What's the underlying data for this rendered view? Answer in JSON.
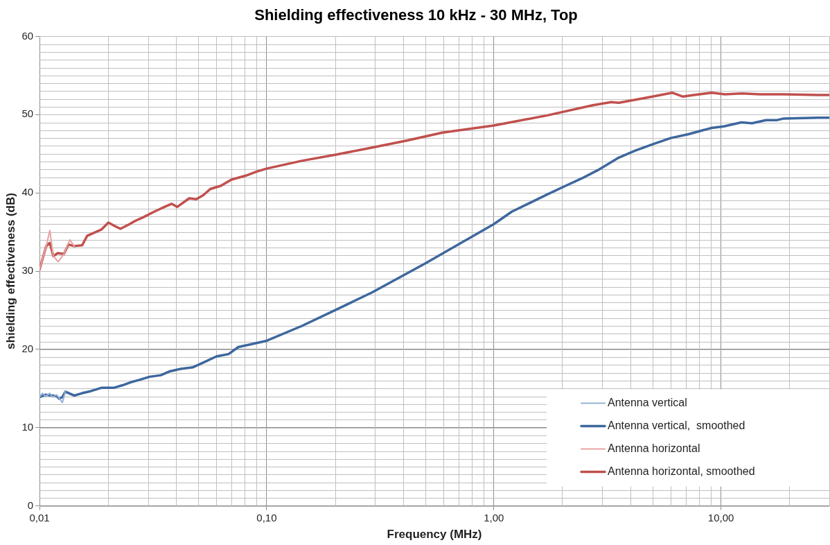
{
  "chart_data": {
    "type": "line",
    "title": "Shielding effectiveness 10 kHz - 30 MHz, Top",
    "xlabel": "Frequency (MHz)",
    "ylabel": "shielding effectiveness (dB)",
    "log": "x",
    "xlim": [
      0.01,
      30
    ],
    "xticks": [
      {
        "value": 0.01,
        "label": "0,01"
      },
      {
        "value": 0.1,
        "label": "0,10"
      },
      {
        "value": 1,
        "label": "1,00"
      },
      {
        "value": 10,
        "label": "10,00"
      }
    ],
    "ylim": [
      0,
      60
    ],
    "yticks": [
      0,
      10,
      20,
      30,
      40,
      50,
      60
    ],
    "grid": true,
    "legend": "bottom right",
    "marker": "none",
    "line_style": "solid",
    "series": [
      {
        "name": "Antenna vertical",
        "color": "#95b3d7",
        "x": [
          0.01,
          0.0103,
          0.0106,
          0.0111,
          0.0114,
          0.0119,
          0.0126,
          0.013
        ],
        "values": [
          13.9,
          14.4,
          14.0,
          14.4,
          13.9,
          14.2,
          13.2,
          14.6
        ]
      },
      {
        "name": "Antenna vertical,  smoothed",
        "color": "#3d679e",
        "x": [
          0.01,
          0.0106,
          0.0114,
          0.0119,
          0.0122,
          0.0126,
          0.013,
          0.0142,
          0.0154,
          0.0165,
          0.0188,
          0.0213,
          0.0231,
          0.0252,
          0.0275,
          0.0305,
          0.0342,
          0.0375,
          0.0418,
          0.0472,
          0.0524,
          0.0601,
          0.068,
          0.075,
          0.1,
          0.143,
          0.2,
          0.292,
          0.5,
          1.0,
          1.2,
          1.72,
          2.07,
          2.5,
          2.87,
          3.55,
          4.2,
          5.0,
          6.0,
          7.2,
          9.1,
          10.3,
          12.3,
          13.7,
          15.8,
          17.7,
          18.9,
          26.8,
          30
        ],
        "values": [
          13.9,
          14.2,
          14.1,
          14.0,
          13.7,
          13.9,
          14.6,
          14.1,
          14.4,
          14.6,
          15.1,
          15.1,
          15.4,
          15.8,
          16.1,
          16.5,
          16.7,
          17.2,
          17.5,
          17.7,
          18.3,
          19.1,
          19.4,
          20.3,
          21.1,
          23.0,
          25.0,
          27.3,
          31.0,
          36.0,
          37.6,
          39.8,
          40.9,
          42.0,
          42.9,
          44.5,
          45.4,
          46.2,
          47.0,
          47.5,
          48.3,
          48.5,
          49.0,
          48.9,
          49.3,
          49.3,
          49.5,
          49.6,
          49.6
        ]
      },
      {
        "name": "Antenna horizontal",
        "color": "#e6a3a1",
        "x": [
          0.01,
          0.0107,
          0.0111,
          0.0115,
          0.0121,
          0.0128,
          0.0136,
          0.0142
        ],
        "values": [
          30.2,
          33.2,
          35.2,
          31.9,
          31.2,
          32.2,
          34.0,
          33.2
        ]
      },
      {
        "name": "Antenna horizontal, smoothed",
        "color": "#c0504d",
        "x": [
          0.01,
          0.0107,
          0.0111,
          0.0115,
          0.012,
          0.0128,
          0.0134,
          0.0142,
          0.0154,
          0.0162,
          0.0174,
          0.0187,
          0.0201,
          0.0213,
          0.0227,
          0.0249,
          0.0263,
          0.0287,
          0.032,
          0.0355,
          0.0382,
          0.0404,
          0.0456,
          0.049,
          0.0526,
          0.0565,
          0.0628,
          0.07,
          0.081,
          0.09,
          0.1,
          0.143,
          0.204,
          0.292,
          0.417,
          0.594,
          1.0,
          1.72,
          2.73,
          3.29,
          3.55,
          5.0,
          6.1,
          6.8,
          7.6,
          9.1,
          10.4,
          12.4,
          14.8,
          18.9,
          26.8,
          30
        ],
        "values": [
          30.2,
          33.2,
          33.6,
          31.9,
          32.3,
          32.2,
          33.4,
          33.2,
          33.3,
          34.5,
          34.9,
          35.3,
          36.2,
          35.8,
          35.4,
          36.0,
          36.4,
          36.9,
          37.6,
          38.2,
          38.6,
          38.2,
          39.3,
          39.2,
          39.7,
          40.5,
          40.9,
          41.7,
          42.2,
          42.7,
          43.1,
          44.1,
          44.9,
          45.8,
          46.7,
          47.7,
          48.6,
          49.9,
          51.2,
          51.6,
          51.5,
          52.3,
          52.8,
          52.3,
          52.5,
          52.8,
          52.6,
          52.7,
          52.6,
          52.6,
          52.5,
          52.5
        ]
      }
    ]
  }
}
